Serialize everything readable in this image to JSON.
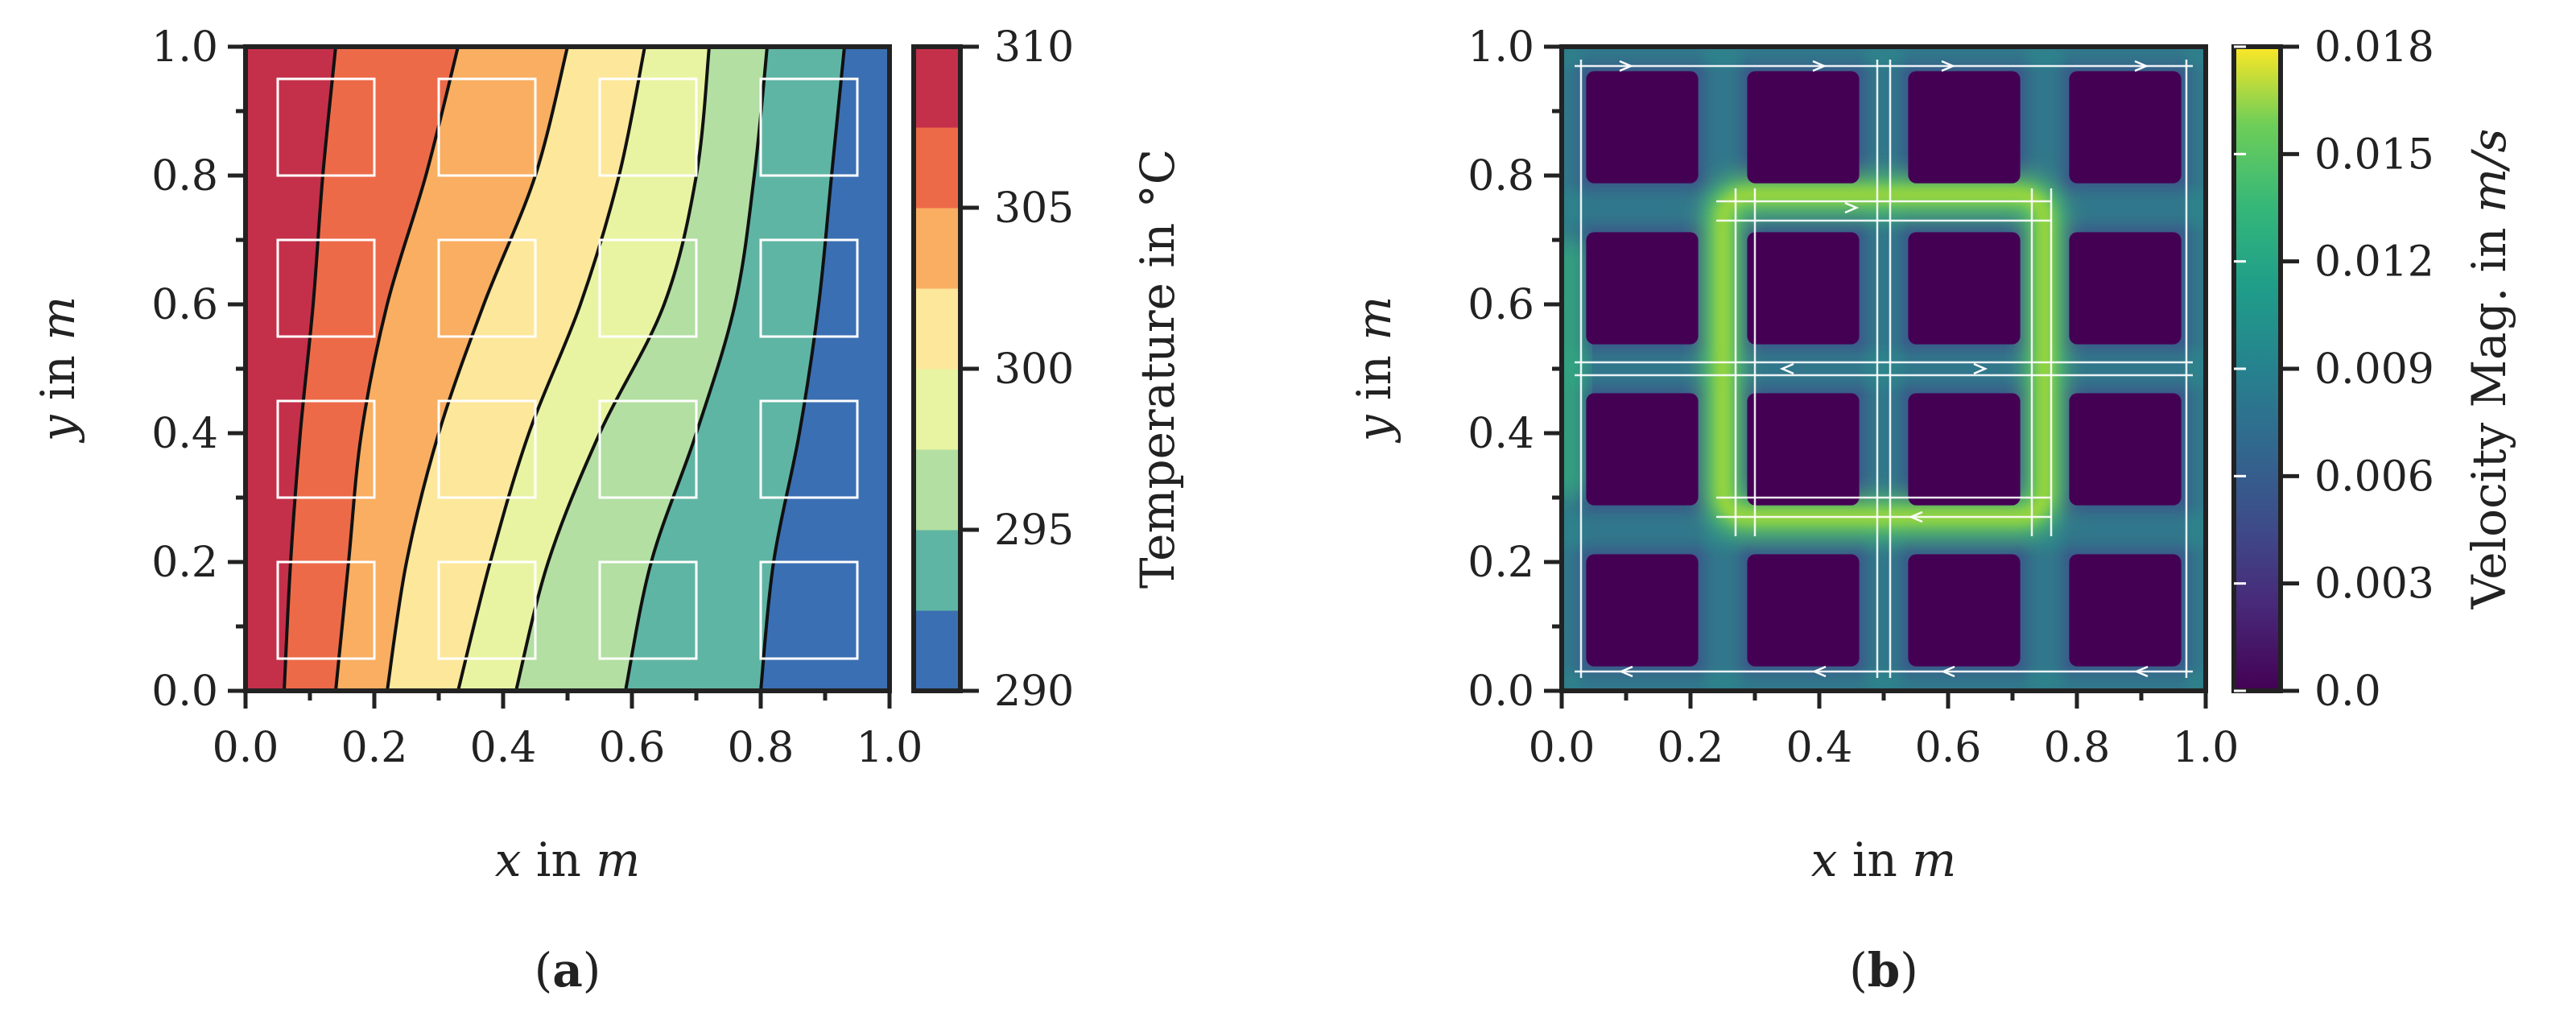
{
  "chart_data": [
    {
      "type": "contour",
      "panel": "(a)",
      "xlabel": "x in m",
      "ylabel": "y in m",
      "xlim": [
        0.0,
        1.0
      ],
      "ylim": [
        0.0,
        1.0
      ],
      "xticks": [
        "0.0",
        "0.2",
        "0.4",
        "0.6",
        "0.8",
        "1.0"
      ],
      "yticks": [
        "0.0",
        "0.2",
        "0.4",
        "0.6",
        "0.8",
        "1.0"
      ],
      "colorbar": {
        "label": "Temperature in °C",
        "ticks": [
          "290",
          "295",
          "300",
          "305",
          "310"
        ],
        "levels": [
          290,
          292.5,
          295,
          297.5,
          300,
          302.5,
          305,
          307.5,
          310
        ],
        "colors": [
          "#3b6fb3",
          "#5fb5a3",
          "#b3dfa2",
          "#e8f4a2",
          "#fde79a",
          "#f9ae61",
          "#ed6a48",
          "#c4304a"
        ]
      },
      "contour_levels_x_at_y": {
        "y": [
          0.0,
          0.2,
          0.4,
          0.6,
          0.8,
          1.0
        ],
        "boundaries": [
          [
            0.06,
            0.07,
            0.085,
            0.105,
            0.12,
            0.14
          ],
          [
            0.14,
            0.16,
            0.18,
            0.22,
            0.28,
            0.33
          ],
          [
            0.22,
            0.25,
            0.3,
            0.37,
            0.45,
            0.5
          ],
          [
            0.33,
            0.38,
            0.44,
            0.52,
            0.58,
            0.62
          ],
          [
            0.42,
            0.47,
            0.55,
            0.65,
            0.7,
            0.72
          ],
          [
            0.59,
            0.63,
            0.7,
            0.76,
            0.79,
            0.81
          ],
          [
            0.8,
            0.82,
            0.86,
            0.89,
            0.91,
            0.93
          ]
        ]
      },
      "obstacle_grid": {
        "columns": 4,
        "rows": 4,
        "centers": [
          0.125,
          0.375,
          0.625,
          0.875
        ],
        "size": 0.15
      }
    },
    {
      "type": "heatmap",
      "panel": "(b)",
      "xlabel": "x in m",
      "ylabel": "y in m",
      "xlim": [
        0.0,
        1.0
      ],
      "ylim": [
        0.0,
        1.0
      ],
      "xticks": [
        "0.0",
        "0.2",
        "0.4",
        "0.6",
        "0.8",
        "1.0"
      ],
      "yticks": [
        "0.0",
        "0.2",
        "0.4",
        "0.6",
        "0.8",
        "1.0"
      ],
      "colorbar": {
        "label": "Velocity Mag. in m/s",
        "ticks": [
          "0.0",
          "0.003",
          "0.006",
          "0.009",
          "0.012",
          "0.015",
          "0.018"
        ],
        "range": [
          0.0,
          0.018
        ],
        "colormap": "viridis"
      },
      "high_velocity_loop": {
        "x_range": [
          0.25,
          0.75
        ],
        "y_range": [
          0.27,
          0.77
        ],
        "peak": 0.016
      },
      "obstacle_grid": {
        "columns": 4,
        "rows": 4,
        "centers": [
          0.125,
          0.375,
          0.625,
          0.875
        ],
        "size": 0.15
      }
    }
  ],
  "captions": {
    "a": "(a)",
    "b": "(b)"
  },
  "labels": {
    "a_x": "x",
    "a_y": "y",
    "b_x": "x",
    "b_y": "y",
    "in_m": " in ",
    "m": "m",
    "temp_label": "Temperature in °C",
    "vel_label_main": "Velocity Mag. in ",
    "vel_unit": "m/s"
  }
}
